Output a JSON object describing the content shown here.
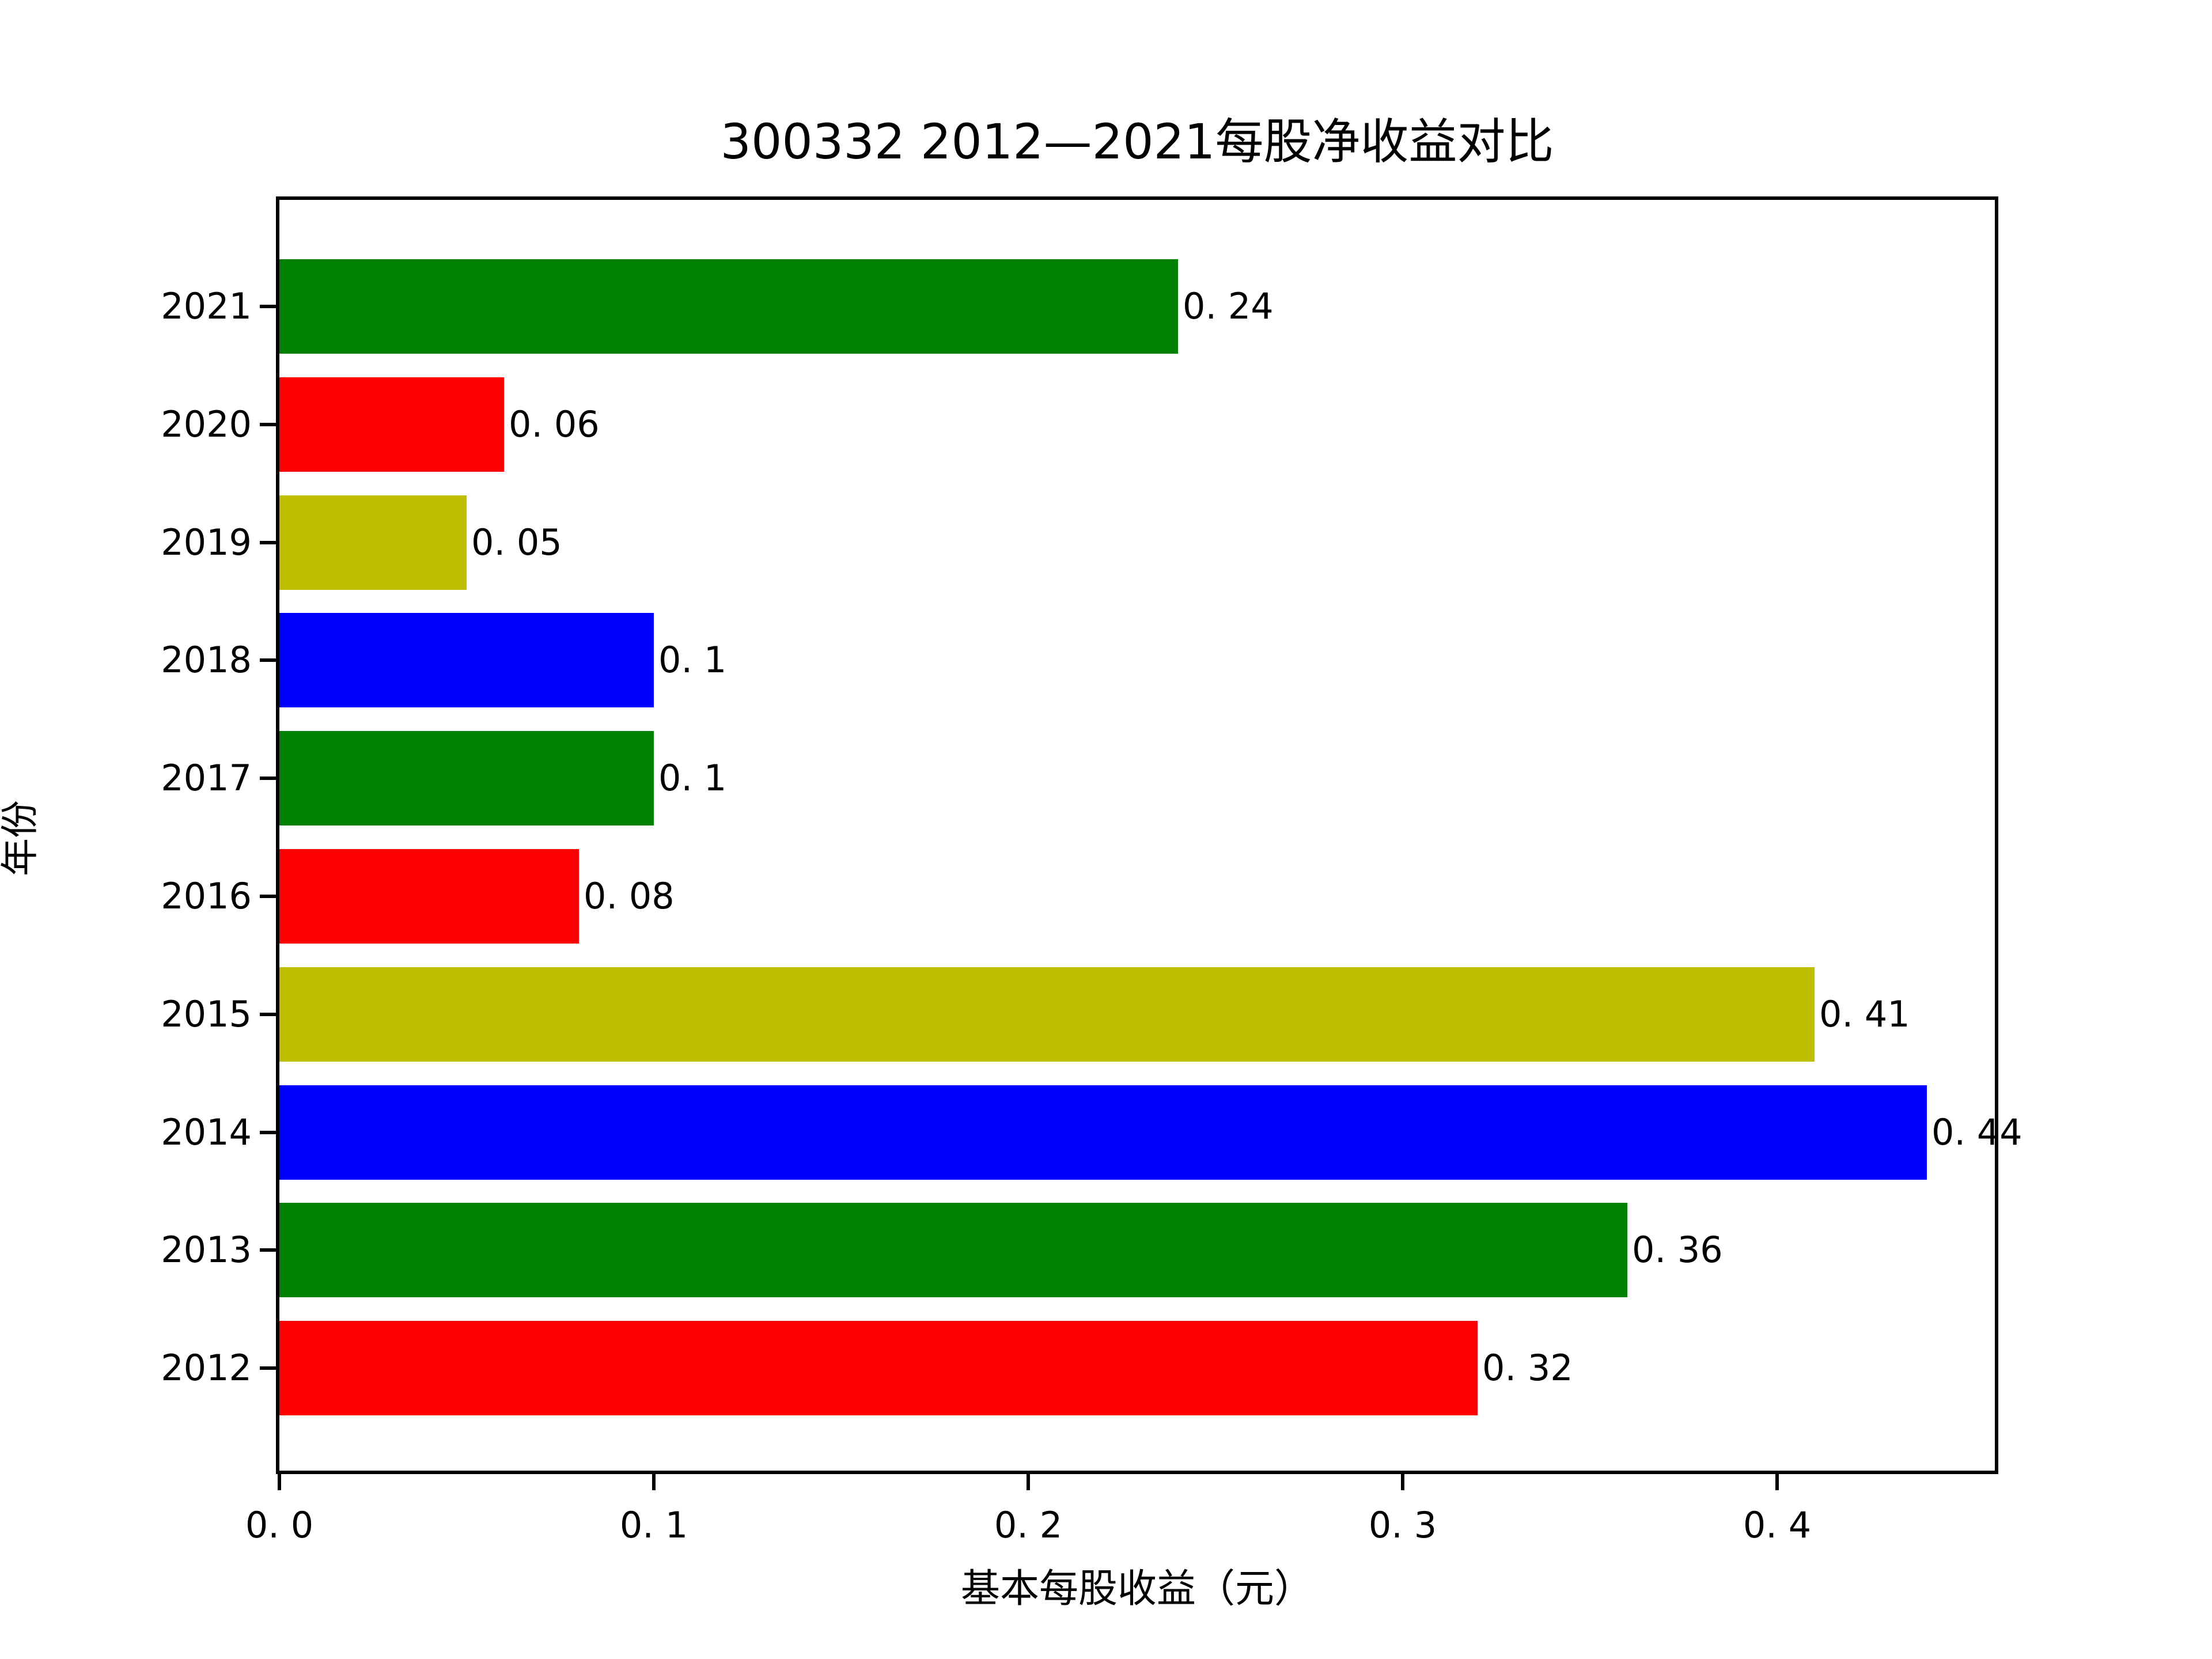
{
  "chart_data": {
    "type": "bar",
    "orientation": "horizontal",
    "title": "300332 2012—2021每股净收益对比",
    "xlabel": "基本每股收益（元）",
    "ylabel": "年份",
    "categories": [
      "2012",
      "2013",
      "2014",
      "2015",
      "2016",
      "2017",
      "2018",
      "2019",
      "2020",
      "2021"
    ],
    "values": [
      0.32,
      0.36,
      0.44,
      0.41,
      0.08,
      0.1,
      0.1,
      0.05,
      0.06,
      0.24
    ],
    "value_labels": [
      "0. 32",
      "0. 36",
      "0. 44",
      "0. 41",
      "0. 08",
      "0. 1",
      "0. 1",
      "0. 05",
      "0. 06",
      "0. 24"
    ],
    "bar_colors": [
      "#ff0000",
      "#008000",
      "#0000ff",
      "#bfbf00",
      "#ff0000",
      "#008000",
      "#0000ff",
      "#bfbf00",
      "#ff0000",
      "#008000"
    ],
    "category_order_top_to_bottom": [
      "2021",
      "2020",
      "2019",
      "2018",
      "2017",
      "2016",
      "2015",
      "2014",
      "2013",
      "2012"
    ],
    "x_ticks": [
      0.0,
      0.1,
      0.2,
      0.3,
      0.4
    ],
    "x_tick_labels": [
      "0. 0",
      "0. 1",
      "0. 2",
      "0. 3",
      "0. 4"
    ],
    "xlim": [
      0,
      0.459
    ],
    "bar_height_fraction": 0.8,
    "grid": false,
    "legend": "none",
    "background_color": "#ffffff",
    "spine_color": "#000000",
    "text_color": "#000000"
  }
}
